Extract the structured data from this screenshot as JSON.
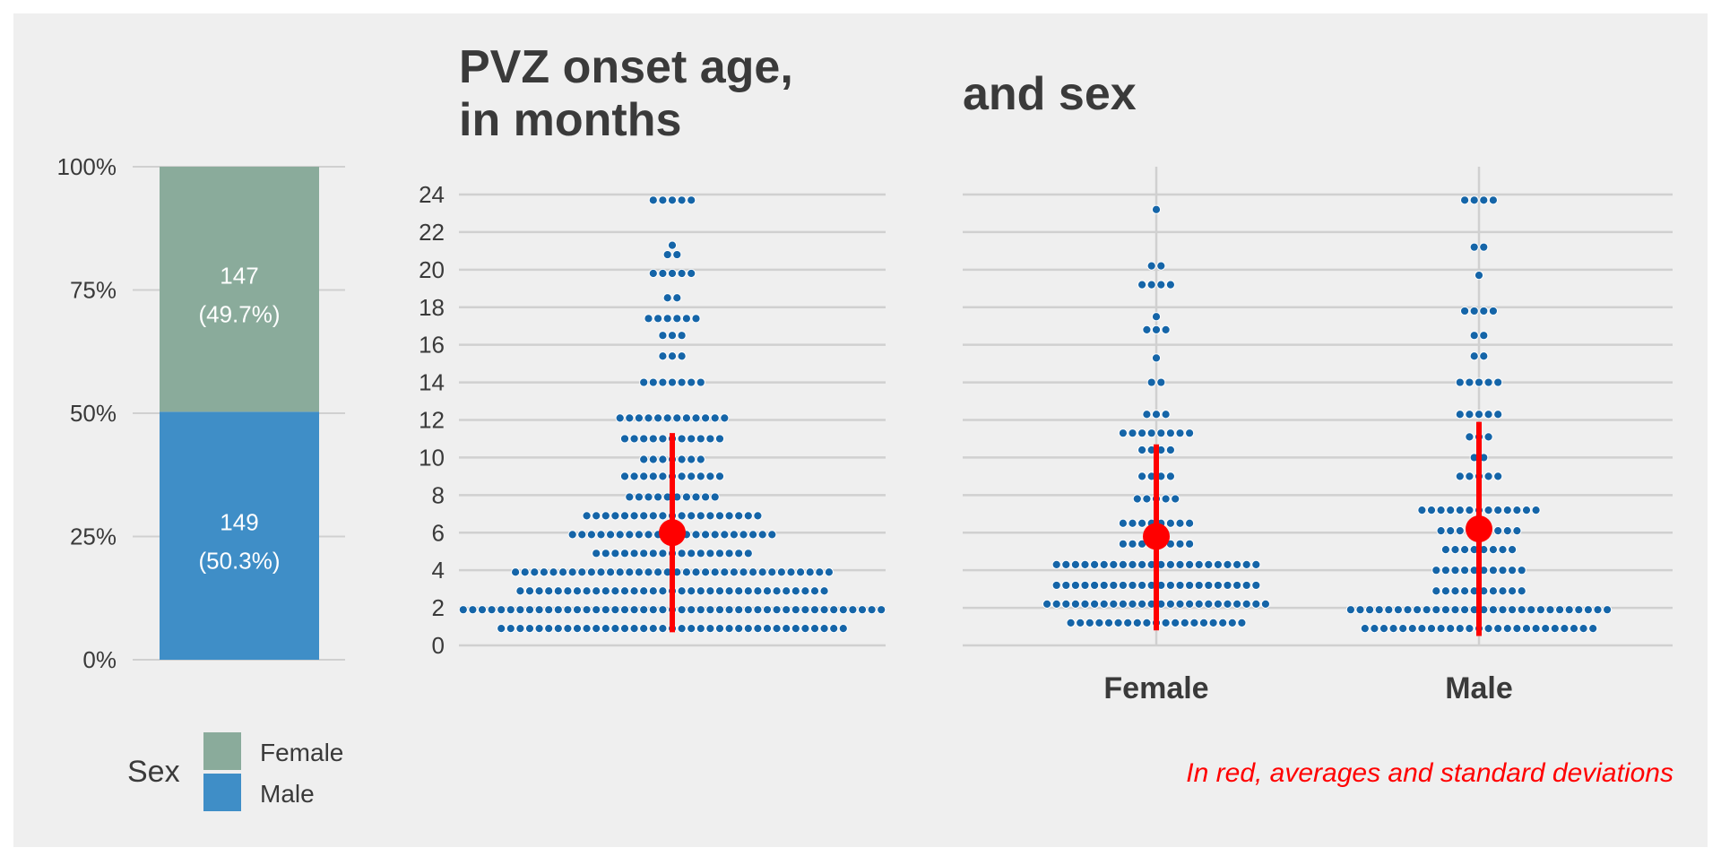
{
  "colors": {
    "panel_bg": "#efefef",
    "grid": "#d0d0d0",
    "text": "#3a3a3a",
    "female": "#8aab9b",
    "male": "#3f8ec7",
    "dot": "#1565a8",
    "summary": "#ff0000"
  },
  "captions": {
    "title_left_line1": "PVZ onset age,",
    "title_left_line2": "in months",
    "title_right": "and sex",
    "footnote": "In red, averages and standard deviations"
  },
  "legend": {
    "title": "Sex",
    "items": [
      {
        "label": "Female",
        "color": "#8aab9b"
      },
      {
        "label": "Male",
        "color": "#3f8ec7"
      }
    ]
  },
  "chart_data": [
    {
      "type": "bar",
      "stacked": true,
      "percent": true,
      "yticks": [
        "0%",
        "25%",
        "50%",
        "75%",
        "100%"
      ],
      "ylim": [
        0,
        100
      ],
      "segments": [
        {
          "name": "Male",
          "count": 149,
          "percent": 50.3,
          "count_label": "149",
          "percent_label": "(50.3%)",
          "color": "#3f8ec7"
        },
        {
          "name": "Female",
          "count": 147,
          "percent": 49.7,
          "count_label": "147",
          "percent_label": "(49.7%)",
          "color": "#8aab9b"
        }
      ],
      "legend_position": "bottom-left"
    },
    {
      "type": "scatter",
      "style": "dotplot",
      "ylim": [
        0,
        24
      ],
      "yticks": [
        "0",
        "2",
        "4",
        "6",
        "8",
        "10",
        "12",
        "14",
        "16",
        "18",
        "20",
        "22",
        "24"
      ],
      "bins": [
        {
          "y": 0.9,
          "count": 37
        },
        {
          "y": 1.9,
          "count": 45
        },
        {
          "y": 2.9,
          "count": 33
        },
        {
          "y": 3.9,
          "count": 34
        },
        {
          "y": 4.9,
          "count": 17
        },
        {
          "y": 5.9,
          "count": 22
        },
        {
          "y": 6.9,
          "count": 19
        },
        {
          "y": 7.9,
          "count": 10
        },
        {
          "y": 9.0,
          "count": 11
        },
        {
          "y": 9.9,
          "count": 7
        },
        {
          "y": 11.0,
          "count": 11
        },
        {
          "y": 12.1,
          "count": 12
        },
        {
          "y": 14.0,
          "count": 7
        },
        {
          "y": 15.4,
          "count": 3
        },
        {
          "y": 16.5,
          "count": 3
        },
        {
          "y": 17.4,
          "count": 6
        },
        {
          "y": 18.5,
          "count": 2
        },
        {
          "y": 19.8,
          "count": 5
        },
        {
          "y": 20.8,
          "count": 2
        },
        {
          "y": 21.3,
          "count": 1
        },
        {
          "y": 23.7,
          "count": 5
        }
      ],
      "summary": {
        "mean": 6.0,
        "sd_low": 0.7,
        "sd_high": 11.3
      }
    },
    {
      "type": "scatter",
      "style": "dotplot",
      "ylim": [
        0,
        24
      ],
      "categories": [
        "Female",
        "Male"
      ],
      "groups": [
        {
          "name": "Female",
          "bins": [
            {
              "y": 1.2,
              "count": 19
            },
            {
              "y": 2.2,
              "count": 24
            },
            {
              "y": 3.2,
              "count": 22
            },
            {
              "y": 4.3,
              "count": 22
            },
            {
              "y": 5.4,
              "count": 8
            },
            {
              "y": 6.5,
              "count": 8
            },
            {
              "y": 7.8,
              "count": 5
            },
            {
              "y": 9.0,
              "count": 4
            },
            {
              "y": 10.4,
              "count": 4
            },
            {
              "y": 11.3,
              "count": 8
            },
            {
              "y": 12.3,
              "count": 3
            },
            {
              "y": 14.0,
              "count": 2
            },
            {
              "y": 15.3,
              "count": 1
            },
            {
              "y": 16.8,
              "count": 3
            },
            {
              "y": 17.5,
              "count": 1
            },
            {
              "y": 19.2,
              "count": 4
            },
            {
              "y": 20.2,
              "count": 2
            },
            {
              "y": 23.2,
              "count": 1
            }
          ],
          "summary": {
            "mean": 5.8,
            "sd_low": 0.8,
            "sd_high": 10.7
          }
        },
        {
          "name": "Male",
          "bins": [
            {
              "y": 0.9,
              "count": 25
            },
            {
              "y": 1.9,
              "count": 28
            },
            {
              "y": 2.9,
              "count": 10
            },
            {
              "y": 4.0,
              "count": 10
            },
            {
              "y": 5.1,
              "count": 8
            },
            {
              "y": 6.1,
              "count": 9
            },
            {
              "y": 7.2,
              "count": 13
            },
            {
              "y": 9.0,
              "count": 5
            },
            {
              "y": 10.0,
              "count": 2
            },
            {
              "y": 11.1,
              "count": 3
            },
            {
              "y": 12.3,
              "count": 5
            },
            {
              "y": 14.0,
              "count": 5
            },
            {
              "y": 15.4,
              "count": 2
            },
            {
              "y": 16.5,
              "count": 2
            },
            {
              "y": 17.8,
              "count": 4
            },
            {
              "y": 19.7,
              "count": 1
            },
            {
              "y": 21.2,
              "count": 2
            },
            {
              "y": 23.7,
              "count": 4
            }
          ],
          "summary": {
            "mean": 6.2,
            "sd_low": 0.5,
            "sd_high": 11.9
          }
        }
      ]
    }
  ]
}
